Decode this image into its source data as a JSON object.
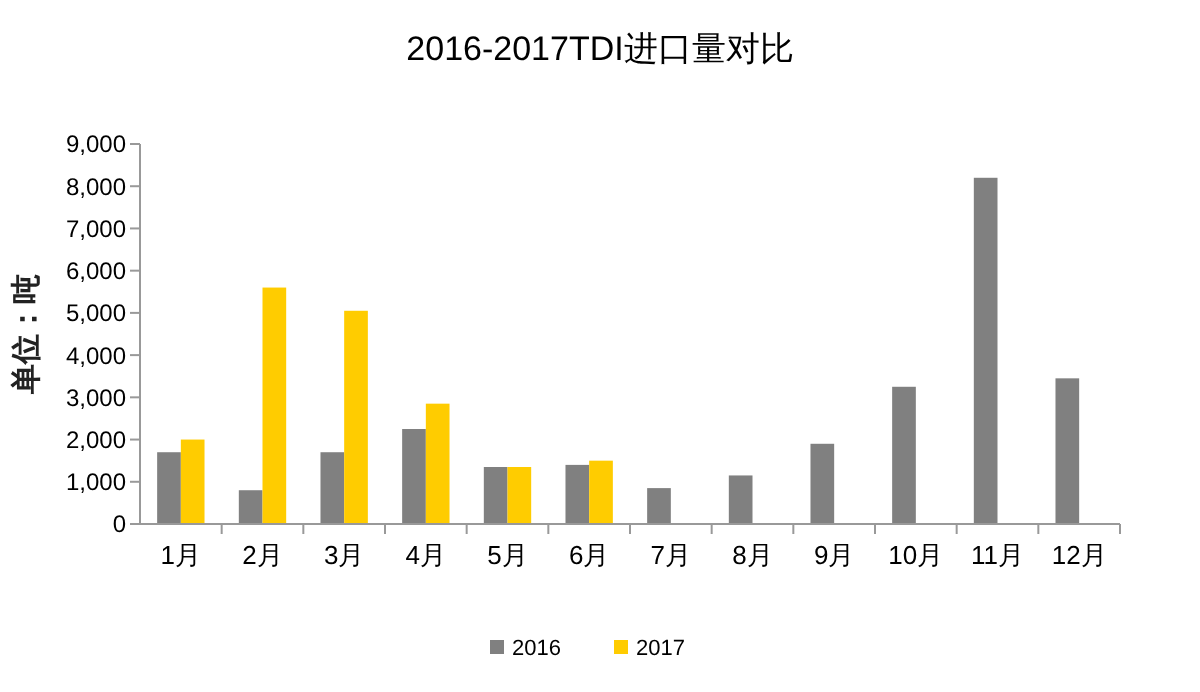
{
  "chart_data": {
    "type": "bar",
    "title": "2016-2017TDI进口量对比",
    "ylabel": "单位：吨",
    "categories": [
      "1月",
      "2月",
      "3月",
      "4月",
      "5月",
      "6月",
      "7月",
      "8月",
      "9月",
      "10月",
      "11月",
      "12月"
    ],
    "series": [
      {
        "name": "2016",
        "color": "#808080",
        "values": [
          1700,
          800,
          1700,
          2250,
          1350,
          1400,
          850,
          1150,
          1900,
          3250,
          8200,
          3450
        ]
      },
      {
        "name": "2017",
        "color": "#ffcc00",
        "values": [
          2000,
          5600,
          5050,
          2850,
          1350,
          1500,
          null,
          null,
          null,
          null,
          null,
          null
        ]
      }
    ],
    "ylim": [
      0,
      9000
    ],
    "yticks": [
      {
        "value": 0,
        "label": "0"
      },
      {
        "value": 1000,
        "label": "1,000"
      },
      {
        "value": 2000,
        "label": "2,000"
      },
      {
        "value": 3000,
        "label": "3,000"
      },
      {
        "value": 4000,
        "label": "4,000"
      },
      {
        "value": 5000,
        "label": "5,000"
      },
      {
        "value": 6000,
        "label": "6,000"
      },
      {
        "value": 7000,
        "label": "7,000"
      },
      {
        "value": 8000,
        "label": "8,000"
      },
      {
        "value": 9000,
        "label": "9,000"
      }
    ],
    "grid": false,
    "legend": "bottom"
  }
}
